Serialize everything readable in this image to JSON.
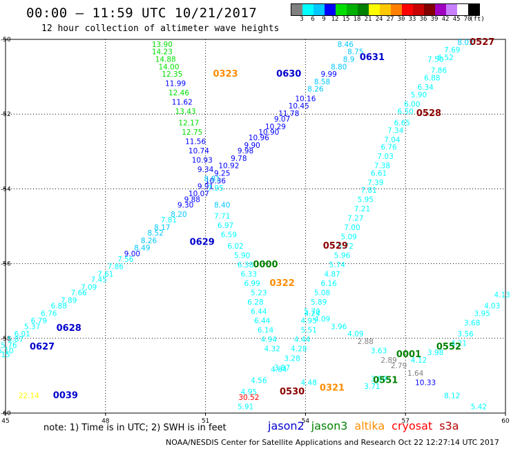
{
  "header": {
    "title": "00:00 – 11:59 UTC 10/21/2017",
    "subtitle": "12 hour collection of altimeter wave heights"
  },
  "legend": {
    "unit": "(ft)",
    "colors": [
      "#808080",
      "#00ffff",
      "#00c8ff",
      "#0000ff",
      "#00e000",
      "#00b000",
      "#008000",
      "#ffff00",
      "#ffc800",
      "#ff8000",
      "#ff0000",
      "#c80000",
      "#800000",
      "#a000c0",
      "#c880ff",
      "#ffffff",
      "#000000"
    ],
    "labels": [
      "3",
      "6",
      "9",
      "12",
      "15",
      "18",
      "21",
      "24",
      "27",
      "30",
      "33",
      "36",
      "39",
      "42",
      "45",
      "70"
    ]
  },
  "note": "note: 1) Time is in UTC; 2) SWH is in feet",
  "satellites": [
    {
      "name": "jason2",
      "color": "#0000cd"
    },
    {
      "name": "jason3",
      "color": "#008000"
    },
    {
      "name": "altika",
      "color": "#ff8c00"
    },
    {
      "name": "cryosat",
      "color": "#ff0000"
    },
    {
      "name": "s3a",
      "color": "#b00000"
    }
  ],
  "footer": "NOAA/NESDIS Center for Satellite Applications and Research   Oct 22 12:27:14 UTC 2017",
  "chart_data": {
    "type": "scatter",
    "xlim": [
      45,
      60
    ],
    "ylim": [
      -60,
      -50
    ],
    "x_ticks": [
      {
        "v": 45,
        "label": "45"
      },
      {
        "v": 48,
        "label": "48"
      },
      {
        "v": 51,
        "label": "51"
      },
      {
        "v": 54,
        "label": "54"
      },
      {
        "v": 57,
        "label": "57"
      },
      {
        "v": 60,
        "label": "60"
      }
    ],
    "y_ticks": [
      {
        "v": -50,
        "label": "-50"
      },
      {
        "v": -52,
        "label": "-52"
      },
      {
        "v": -54,
        "label": "-54"
      },
      {
        "v": -56,
        "label": "-56"
      },
      {
        "v": -58,
        "label": "-58"
      },
      {
        "v": -60,
        "label": "-60"
      }
    ],
    "grid": "dotted",
    "passes": [
      {
        "label": "0527",
        "lon": 59.3,
        "lat": -50.15,
        "color": "#8b0000"
      },
      {
        "label": "0631",
        "lon": 56.0,
        "lat": -50.55,
        "color": "#0000cd"
      },
      {
        "label": "0528",
        "lon": 57.7,
        "lat": -52.05,
        "color": "#8b0000"
      },
      {
        "label": "0323",
        "lon": 51.6,
        "lat": -51.0,
        "color": "#ff8c00"
      },
      {
        "label": "0630",
        "lon": 53.5,
        "lat": -51.0,
        "color": "#0000cd"
      },
      {
        "label": "0629",
        "lon": 50.9,
        "lat": -55.5,
        "color": "#0000cd"
      },
      {
        "label": "0529",
        "lon": 54.9,
        "lat": -55.6,
        "color": "#8b0000"
      },
      {
        "label": "0000",
        "lon": 52.8,
        "lat": -56.1,
        "color": "#008000"
      },
      {
        "label": "0322",
        "lon": 53.3,
        "lat": -56.6,
        "color": "#ff8c00"
      },
      {
        "label": "0628",
        "lon": 46.9,
        "lat": -57.8,
        "color": "#0000cd"
      },
      {
        "label": "0627",
        "lon": 46.1,
        "lat": -58.3,
        "color": "#0000cd"
      },
      {
        "label": "0552",
        "lon": 58.3,
        "lat": -58.3,
        "color": "#008000"
      },
      {
        "label": "0001",
        "lon": 57.1,
        "lat": -58.5,
        "color": "#008000"
      },
      {
        "label": "0551",
        "lon": 56.4,
        "lat": -59.2,
        "color": "#008000"
      },
      {
        "label": "0530",
        "lon": 53.6,
        "lat": -59.5,
        "color": "#8b0000"
      },
      {
        "label": "0321",
        "lon": 54.8,
        "lat": -59.4,
        "color": "#ff8c00"
      },
      {
        "label": "0039",
        "lon": 46.8,
        "lat": -59.6,
        "color": "#0000cd"
      }
    ],
    "observations": [
      {
        "lon": 58.8,
        "lat": -50.15,
        "v": "8.02",
        "c": "#00c8ff"
      },
      {
        "lon": 58.4,
        "lat": -50.35,
        "v": "7.69",
        "c": "#00ffff"
      },
      {
        "lon": 58.2,
        "lat": -50.55,
        "v": "6.52",
        "c": "#00ffff"
      },
      {
        "lon": 57.9,
        "lat": -50.6,
        "v": "7.50",
        "c": "#00ffff"
      },
      {
        "lon": 58.0,
        "lat": -50.9,
        "v": "7.86",
        "c": "#00ffff"
      },
      {
        "lon": 57.8,
        "lat": -51.1,
        "v": "6.88",
        "c": "#00ffff"
      },
      {
        "lon": 57.6,
        "lat": -51.35,
        "v": "6.34",
        "c": "#00ffff"
      },
      {
        "lon": 57.4,
        "lat": -51.55,
        "v": "5.90",
        "c": "#00ffff"
      },
      {
        "lon": 57.2,
        "lat": -51.8,
        "v": "6.00",
        "c": "#00ffff"
      },
      {
        "lon": 57.0,
        "lat": -52.0,
        "v": "6.50",
        "c": "#00ffff"
      },
      {
        "lon": 56.9,
        "lat": -52.3,
        "v": "6.65",
        "c": "#00ffff"
      },
      {
        "lon": 56.7,
        "lat": -52.5,
        "v": "7.34",
        "c": "#00ffff"
      },
      {
        "lon": 56.6,
        "lat": -52.75,
        "v": "7.04",
        "c": "#00ffff"
      },
      {
        "lon": 56.5,
        "lat": -52.95,
        "v": "6.76",
        "c": "#00ffff"
      },
      {
        "lon": 56.4,
        "lat": -53.2,
        "v": "7.03",
        "c": "#00ffff"
      },
      {
        "lon": 56.3,
        "lat": -53.45,
        "v": "7.38",
        "c": "#00ffff"
      },
      {
        "lon": 56.2,
        "lat": -53.65,
        "v": "6.61",
        "c": "#00ffff"
      },
      {
        "lon": 56.1,
        "lat": -53.9,
        "v": "7.39",
        "c": "#00ffff"
      },
      {
        "lon": 55.9,
        "lat": -54.1,
        "v": "7.81",
        "c": "#00ffff"
      },
      {
        "lon": 55.8,
        "lat": -54.35,
        "v": "5.95",
        "c": "#00ffff"
      },
      {
        "lon": 55.7,
        "lat": -54.6,
        "v": "7.21",
        "c": "#00ffff"
      },
      {
        "lon": 55.5,
        "lat": -54.85,
        "v": "7.27",
        "c": "#00ffff"
      },
      {
        "lon": 55.4,
        "lat": -55.1,
        "v": "7.00",
        "c": "#00ffff"
      },
      {
        "lon": 55.3,
        "lat": -55.35,
        "v": "5.09",
        "c": "#00ffff"
      },
      {
        "lon": 55.2,
        "lat": -55.6,
        "v": "5.72",
        "c": "#00ffff"
      },
      {
        "lon": 55.1,
        "lat": -55.85,
        "v": "5.96",
        "c": "#00ffff"
      },
      {
        "lon": 54.95,
        "lat": -56.1,
        "v": "5.74",
        "c": "#00ffff"
      },
      {
        "lon": 54.8,
        "lat": -56.35,
        "v": "4.87",
        "c": "#00ffff"
      },
      {
        "lon": 54.7,
        "lat": -56.6,
        "v": "6.16",
        "c": "#00ffff"
      },
      {
        "lon": 54.5,
        "lat": -56.85,
        "v": "5.08",
        "c": "#00ffff"
      },
      {
        "lon": 54.4,
        "lat": -57.1,
        "v": "5.89",
        "c": "#00ffff"
      },
      {
        "lon": 54.2,
        "lat": -57.35,
        "v": "5.70",
        "c": "#00ffff"
      },
      {
        "lon": 54.1,
        "lat": -57.6,
        "v": "4.95",
        "c": "#00ffff"
      },
      {
        "lon": 54.1,
        "lat": -57.85,
        "v": "5.51",
        "c": "#00ffff"
      },
      {
        "lon": 53.9,
        "lat": -58.1,
        "v": "4.44",
        "c": "#00ffff"
      },
      {
        "lon": 53.8,
        "lat": -58.35,
        "v": "4.28",
        "c": "#00ffff"
      },
      {
        "lon": 53.6,
        "lat": -58.6,
        "v": "3.28",
        "c": "#00ffff"
      },
      {
        "lon": 53.3,
        "lat": -58.85,
        "v": "3.87",
        "c": "#00ffff"
      },
      {
        "lon": 52.6,
        "lat": -59.2,
        "v": "4.56",
        "c": "#00ffff"
      },
      {
        "lon": 52.3,
        "lat": -59.5,
        "v": "4.95",
        "c": "#00ffff"
      },
      {
        "lon": 52.2,
        "lat": -59.9,
        "v": "5.91",
        "c": "#00ffff"
      },
      {
        "lon": 52.3,
        "lat": -59.65,
        "v": "30.52",
        "c": "#ff0000"
      },
      {
        "lon": 54.1,
        "lat": -59.25,
        "v": "4.48",
        "c": "#00ffff"
      },
      {
        "lon": 54.2,
        "lat": -57.4,
        "v": "4.24",
        "c": "#00ffff"
      },
      {
        "lon": 54.5,
        "lat": -57.55,
        "v": "4.09",
        "c": "#00ffff"
      },
      {
        "lon": 55.0,
        "lat": -57.75,
        "v": "3.96",
        "c": "#00ffff"
      },
      {
        "lon": 55.5,
        "lat": -57.95,
        "v": "4.09",
        "c": "#00ffff"
      },
      {
        "lon": 55.8,
        "lat": -58.15,
        "v": "2.88",
        "c": "#808080"
      },
      {
        "lon": 56.2,
        "lat": -58.4,
        "v": "3.63",
        "c": "#00ffff"
      },
      {
        "lon": 56.5,
        "lat": -58.65,
        "v": "2.89",
        "c": "#808080"
      },
      {
        "lon": 56.8,
        "lat": -58.8,
        "v": "2.79",
        "c": "#808080"
      },
      {
        "lon": 57.3,
        "lat": -59.0,
        "v": "1.64",
        "c": "#808080"
      },
      {
        "lon": 56.2,
        "lat": -59.15,
        "v": "3.89",
        "c": "#00ffff"
      },
      {
        "lon": 56.0,
        "lat": -59.35,
        "v": "3.71",
        "c": "#00ffff"
      },
      {
        "lon": 57.6,
        "lat": -59.25,
        "v": "10.33",
        "c": "#0000ff"
      },
      {
        "lon": 58.4,
        "lat": -59.6,
        "v": "8.12",
        "c": "#00ffff"
      },
      {
        "lon": 59.2,
        "lat": -59.9,
        "v": "5.42",
        "c": "#00ffff"
      },
      {
        "lon": 57.4,
        "lat": -58.65,
        "v": "4.12",
        "c": "#00ffff"
      },
      {
        "lon": 57.9,
        "lat": -58.45,
        "v": "3.98",
        "c": "#00ffff"
      },
      {
        "lon": 58.6,
        "lat": -58.2,
        "v": "4.21",
        "c": "#00ffff"
      },
      {
        "lon": 58.8,
        "lat": -57.95,
        "v": "3.56",
        "c": "#00ffff"
      },
      {
        "lon": 59.0,
        "lat": -57.65,
        "v": "3.68",
        "c": "#00ffff"
      },
      {
        "lon": 59.3,
        "lat": -57.4,
        "v": "3.95",
        "c": "#00ffff"
      },
      {
        "lon": 59.6,
        "lat": -57.2,
        "v": "4.03",
        "c": "#00ffff"
      },
      {
        "lon": 59.9,
        "lat": -56.9,
        "v": "4.13",
        "c": "#00ffff"
      },
      {
        "lon": 55.2,
        "lat": -50.2,
        "v": "8.46",
        "c": "#00c8ff"
      },
      {
        "lon": 55.5,
        "lat": -50.4,
        "v": "8.75",
        "c": "#00c8ff"
      },
      {
        "lon": 55.3,
        "lat": -50.6,
        "v": "8.9",
        "c": "#00c8ff"
      },
      {
        "lon": 55.0,
        "lat": -50.8,
        "v": "8.80",
        "c": "#00c8ff"
      },
      {
        "lon": 54.7,
        "lat": -51.0,
        "v": "9.99",
        "c": "#0000ff"
      },
      {
        "lon": 54.5,
        "lat": -51.2,
        "v": "8.58",
        "c": "#00c8ff"
      },
      {
        "lon": 54.3,
        "lat": -51.4,
        "v": "8.26",
        "c": "#00c8ff"
      },
      {
        "lon": 54.0,
        "lat": -51.65,
        "v": "10.16",
        "c": "#0000ff"
      },
      {
        "lon": 53.8,
        "lat": -51.85,
        "v": "10.45",
        "c": "#0000ff"
      },
      {
        "lon": 53.5,
        "lat": -52.05,
        "v": "11.78",
        "c": "#0000ff"
      },
      {
        "lon": 53.3,
        "lat": -52.2,
        "v": "9.07",
        "c": "#0000ff"
      },
      {
        "lon": 53.1,
        "lat": -52.4,
        "v": "10.29",
        "c": "#0000ff"
      },
      {
        "lon": 52.9,
        "lat": -52.55,
        "v": "10.90",
        "c": "#0000ff"
      },
      {
        "lon": 52.6,
        "lat": -52.7,
        "v": "10.96",
        "c": "#0000ff"
      },
      {
        "lon": 52.4,
        "lat": -52.9,
        "v": "9.90",
        "c": "#0000ff"
      },
      {
        "lon": 52.2,
        "lat": -53.05,
        "v": "9.98",
        "c": "#0000ff"
      },
      {
        "lon": 52.0,
        "lat": -53.25,
        "v": "9.78",
        "c": "#0000ff"
      },
      {
        "lon": 51.7,
        "lat": -53.45,
        "v": "10.92",
        "c": "#0000ff"
      },
      {
        "lon": 51.5,
        "lat": -53.65,
        "v": "9.25",
        "c": "#0000ff"
      },
      {
        "lon": 51.3,
        "lat": -53.85,
        "v": "10.36",
        "c": "#0000ff"
      },
      {
        "lon": 51.0,
        "lat": -54.0,
        "v": "9.91",
        "c": "#0000ff"
      },
      {
        "lon": 50.8,
        "lat": -54.2,
        "v": "10.07",
        "c": "#0000ff"
      },
      {
        "lon": 50.6,
        "lat": -54.35,
        "v": "9.88",
        "c": "#0000ff"
      },
      {
        "lon": 50.4,
        "lat": -54.5,
        "v": "9.30",
        "c": "#0000ff"
      },
      {
        "lon": 50.2,
        "lat": -54.75,
        "v": "8.20",
        "c": "#00c8ff"
      },
      {
        "lon": 49.9,
        "lat": -54.9,
        "v": "7.81",
        "c": "#00ffff"
      },
      {
        "lon": 49.7,
        "lat": -55.1,
        "v": "8.17",
        "c": "#00c8ff"
      },
      {
        "lon": 49.5,
        "lat": -55.25,
        "v": "8.52",
        "c": "#00c8ff"
      },
      {
        "lon": 49.3,
        "lat": -55.45,
        "v": "8.26",
        "c": "#00c8ff"
      },
      {
        "lon": 49.1,
        "lat": -55.65,
        "v": "8.49",
        "c": "#00c8ff"
      },
      {
        "lon": 48.8,
        "lat": -55.8,
        "v": "9.00",
        "c": "#0000ff"
      },
      {
        "lon": 48.6,
        "lat": -55.95,
        "v": "7.56",
        "c": "#00ffff"
      },
      {
        "lon": 48.3,
        "lat": -56.15,
        "v": "7.86",
        "c": "#00ffff"
      },
      {
        "lon": 48.0,
        "lat": -56.35,
        "v": "7.61",
        "c": "#00ffff"
      },
      {
        "lon": 47.8,
        "lat": -56.5,
        "v": "7.45",
        "c": "#00ffff"
      },
      {
        "lon": 47.5,
        "lat": -56.7,
        "v": "7.09",
        "c": "#00ffff"
      },
      {
        "lon": 47.2,
        "lat": -56.85,
        "v": "7.66",
        "c": "#00ffff"
      },
      {
        "lon": 46.9,
        "lat": -57.05,
        "v": "7.89",
        "c": "#00ffff"
      },
      {
        "lon": 46.6,
        "lat": -57.2,
        "v": "6.88",
        "c": "#00ffff"
      },
      {
        "lon": 46.3,
        "lat": -57.4,
        "v": "6.76",
        "c": "#00ffff"
      },
      {
        "lon": 46.0,
        "lat": -57.6,
        "v": "6.79",
        "c": "#00ffff"
      },
      {
        "lon": 45.8,
        "lat": -57.75,
        "v": "5.37",
        "c": "#00ffff"
      },
      {
        "lon": 45.5,
        "lat": -57.95,
        "v": "6.01",
        "c": "#00ffff"
      },
      {
        "lon": 45.3,
        "lat": -58.1,
        "v": "5.87",
        "c": "#00ffff"
      },
      {
        "lon": 45.1,
        "lat": -58.25,
        "v": "5.76",
        "c": "#00ffff"
      },
      {
        "lon": 45.0,
        "lat": -58.4,
        "v": "5.10",
        "c": "#00ffff"
      },
      {
        "lon": 44.9,
        "lat": -58.5,
        "v": "5.15",
        "c": "#00ffff"
      },
      {
        "lon": 45.7,
        "lat": -59.6,
        "v": "22.14",
        "c": "#ffff00"
      },
      {
        "lon": 49.7,
        "lat": -50.2,
        "v": "13.90",
        "c": "#00e000"
      },
      {
        "lon": 49.7,
        "lat": -50.4,
        "v": "14.23",
        "c": "#00e000"
      },
      {
        "lon": 49.8,
        "lat": -50.6,
        "v": "14.88",
        "c": "#00e000"
      },
      {
        "lon": 49.9,
        "lat": -50.8,
        "v": "14.00",
        "c": "#00e000"
      },
      {
        "lon": 50.0,
        "lat": -51.0,
        "v": "12.35",
        "c": "#00e000"
      },
      {
        "lon": 50.1,
        "lat": -51.25,
        "v": "11.99",
        "c": "#0000ff"
      },
      {
        "lon": 50.2,
        "lat": -51.5,
        "v": "12.46",
        "c": "#00e000"
      },
      {
        "lon": 50.3,
        "lat": -51.75,
        "v": "11.62",
        "c": "#0000ff"
      },
      {
        "lon": 50.4,
        "lat": -52.0,
        "v": "13.43",
        "c": "#00e000"
      },
      {
        "lon": 50.5,
        "lat": -52.3,
        "v": "12.17",
        "c": "#00e000"
      },
      {
        "lon": 50.6,
        "lat": -52.55,
        "v": "12.75",
        "c": "#00e000"
      },
      {
        "lon": 50.7,
        "lat": -52.8,
        "v": "11.56",
        "c": "#0000ff"
      },
      {
        "lon": 50.8,
        "lat": -53.05,
        "v": "10.74",
        "c": "#0000ff"
      },
      {
        "lon": 50.9,
        "lat": -53.3,
        "v": "10.93",
        "c": "#0000ff"
      },
      {
        "lon": 51.0,
        "lat": -53.55,
        "v": "9.34",
        "c": "#0000ff"
      },
      {
        "lon": 51.2,
        "lat": -53.8,
        "v": "8.81",
        "c": "#00c8ff"
      },
      {
        "lon": 51.3,
        "lat": -54.05,
        "v": "7.95",
        "c": "#00ffff"
      },
      {
        "lon": 51.5,
        "lat": -54.5,
        "v": "8.40",
        "c": "#00c8ff"
      },
      {
        "lon": 51.5,
        "lat": -54.8,
        "v": "7.71",
        "c": "#00ffff"
      },
      {
        "lon": 51.6,
        "lat": -55.05,
        "v": "6.97",
        "c": "#00ffff"
      },
      {
        "lon": 51.7,
        "lat": -55.3,
        "v": "6.59",
        "c": "#00ffff"
      },
      {
        "lon": 51.9,
        "lat": -55.6,
        "v": "6.02",
        "c": "#00ffff"
      },
      {
        "lon": 52.1,
        "lat": -55.85,
        "v": "5.90",
        "c": "#00ffff"
      },
      {
        "lon": 52.2,
        "lat": -56.1,
        "v": "6.38",
        "c": "#00ffff"
      },
      {
        "lon": 52.3,
        "lat": -56.35,
        "v": "6.33",
        "c": "#00ffff"
      },
      {
        "lon": 52.4,
        "lat": -56.6,
        "v": "6.99",
        "c": "#00ffff"
      },
      {
        "lon": 52.6,
        "lat": -56.85,
        "v": "5.23",
        "c": "#00ffff"
      },
      {
        "lon": 52.5,
        "lat": -57.1,
        "v": "6.28",
        "c": "#00ffff"
      },
      {
        "lon": 52.6,
        "lat": -57.35,
        "v": "6.44",
        "c": "#00ffff"
      },
      {
        "lon": 52.7,
        "lat": -57.6,
        "v": "6.44",
        "c": "#00ffff"
      },
      {
        "lon": 52.8,
        "lat": -57.85,
        "v": "6.14",
        "c": "#00ffff"
      },
      {
        "lon": 52.9,
        "lat": -58.1,
        "v": "4.94",
        "c": "#00ffff"
      },
      {
        "lon": 53.0,
        "lat": -58.35,
        "v": "4.32",
        "c": "#00ffff"
      },
      {
        "lon": 53.2,
        "lat": -58.9,
        "v": "4.84",
        "c": "#00ffff"
      }
    ]
  }
}
